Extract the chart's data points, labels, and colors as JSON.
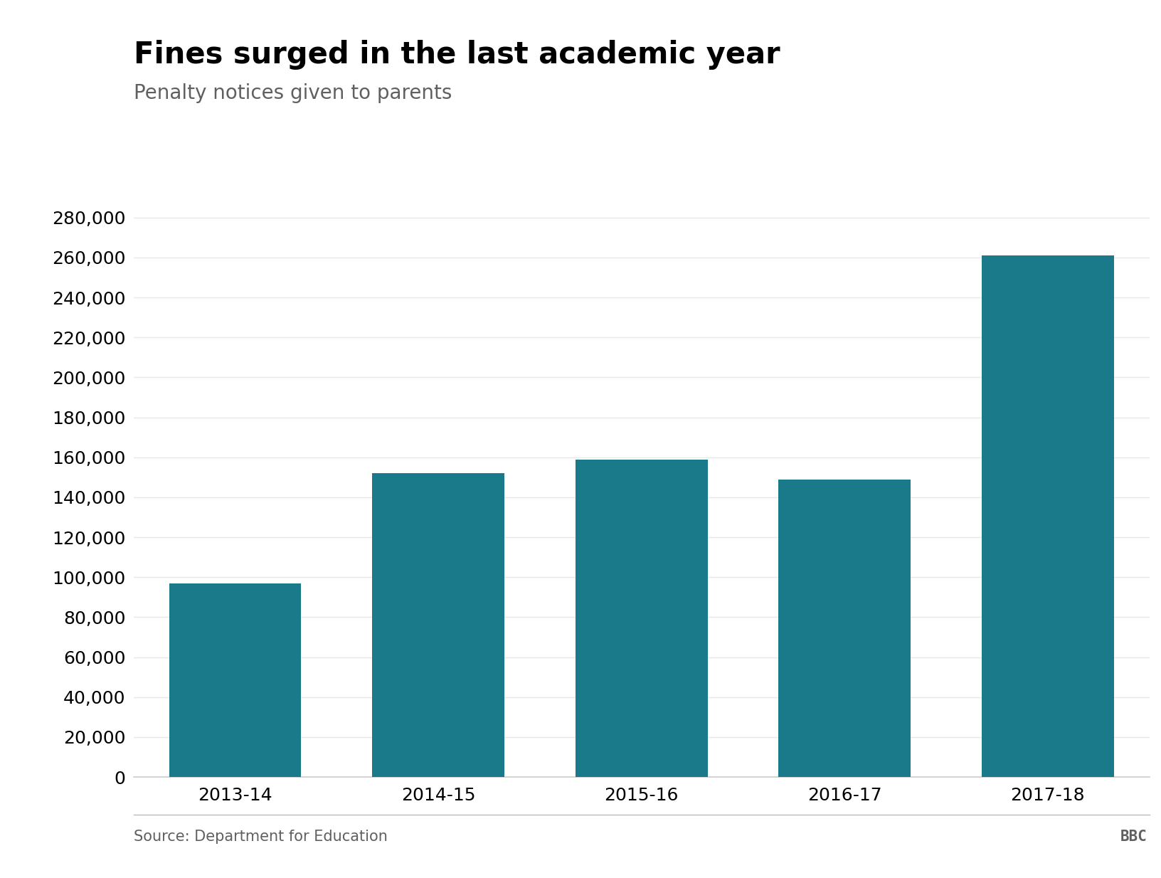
{
  "title": "Fines surged in the last academic year",
  "subtitle": "Penalty notices given to parents",
  "source": "Source: Department for Education",
  "categories": [
    "2013-14",
    "2014-15",
    "2015-16",
    "2016-17",
    "2017-18"
  ],
  "values": [
    97000,
    152000,
    159000,
    149000,
    261000
  ],
  "bar_color": "#1a7a8a",
  "background_color": "#ffffff",
  "title_fontsize": 30,
  "subtitle_fontsize": 20,
  "tick_fontsize": 18,
  "source_fontsize": 15,
  "ylim": [
    0,
    290000
  ],
  "yticks": [
    0,
    20000,
    40000,
    60000,
    80000,
    100000,
    120000,
    140000,
    160000,
    180000,
    200000,
    220000,
    240000,
    260000,
    280000
  ],
  "title_color": "#000000",
  "subtitle_color": "#606060",
  "tick_color": "#000000",
  "axis_color": "#cccccc",
  "grid_color": "#e8e8e8",
  "source_color": "#606060",
  "bbc_color": "#606060",
  "bar_width": 0.65
}
